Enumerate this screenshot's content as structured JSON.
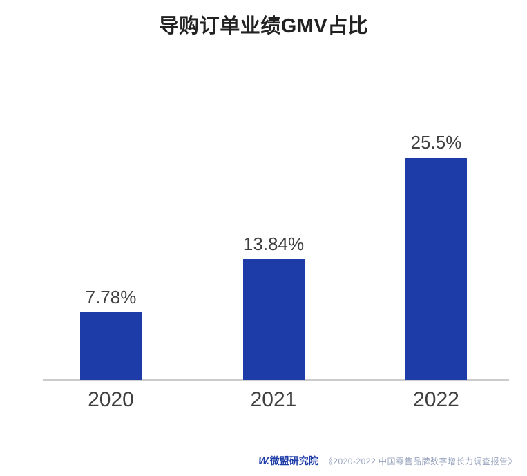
{
  "chart_data": {
    "type": "bar",
    "title": "导购订单业绩GMV占比",
    "categories": [
      "2020",
      "2021",
      "2022"
    ],
    "values": [
      7.78,
      13.84,
      25.5
    ],
    "value_labels": [
      "7.78%",
      "13.84%",
      "25.5%"
    ],
    "xlabel": "",
    "ylabel": "",
    "ylim": [
      0,
      30
    ],
    "grid": false,
    "legend": "none",
    "bar_color": "#1e3ca8"
  },
  "footer": {
    "logo_mark": "W.",
    "logo_text": "微盟研究院",
    "source": "《2020-2022 中国零售品牌数字增长力调查报告》"
  },
  "colors": {
    "bar": "#1e3ca8",
    "axis_line": "#cccccc",
    "label_text": "#3f3f3f",
    "title_text": "#222222",
    "footer_logo": "#1e3ca8",
    "footer_source": "#97a3be"
  }
}
